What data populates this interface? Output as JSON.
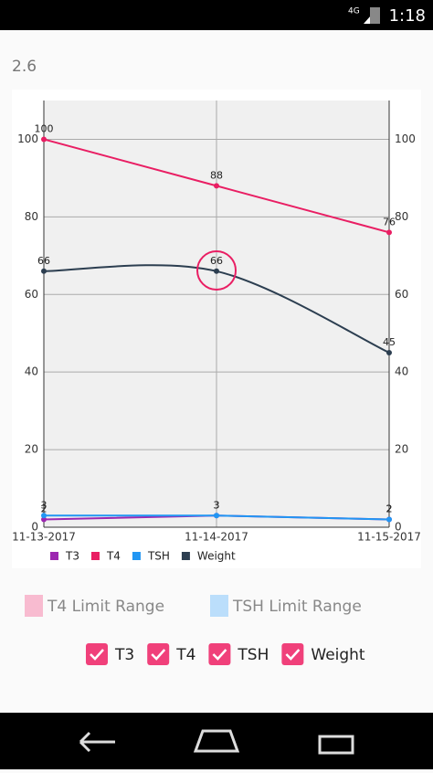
{
  "status_bar": {
    "network": "4G",
    "time": "1:18"
  },
  "header": {
    "title": "2.6"
  },
  "chart_data": {
    "type": "line",
    "categories": [
      "11-13-2017",
      "11-14-2017",
      "11-15-2017"
    ],
    "series": [
      {
        "name": "T3",
        "color": "#9c27b0",
        "values": [
          2,
          3,
          2
        ]
      },
      {
        "name": "T4",
        "color": "#e91e63",
        "values": [
          100,
          88,
          76
        ]
      },
      {
        "name": "TSH",
        "color": "#2196f3",
        "values": [
          3,
          3,
          2
        ]
      },
      {
        "name": "Weight",
        "color": "#2c3e50",
        "values": [
          66,
          66,
          45
        ],
        "smooth": true
      }
    ],
    "ylim": [
      0,
      110
    ],
    "yticks": [
      0,
      20,
      40,
      60,
      80,
      100
    ],
    "y2lim": [
      0,
      110
    ],
    "y2ticks": [
      0,
      20,
      40,
      60,
      80,
      100
    ],
    "grid": true,
    "legend": "bottom"
  },
  "limit_ranges": [
    {
      "label": "T4 Limit Range",
      "color": "#f8bbd0"
    },
    {
      "label": "TSH Limit Range",
      "color": "#bbdefb"
    }
  ],
  "checkboxes": [
    {
      "label": "T3",
      "checked": true
    },
    {
      "label": "T4",
      "checked": true
    },
    {
      "label": "TSH",
      "checked": true
    },
    {
      "label": "Weight",
      "checked": true
    }
  ]
}
